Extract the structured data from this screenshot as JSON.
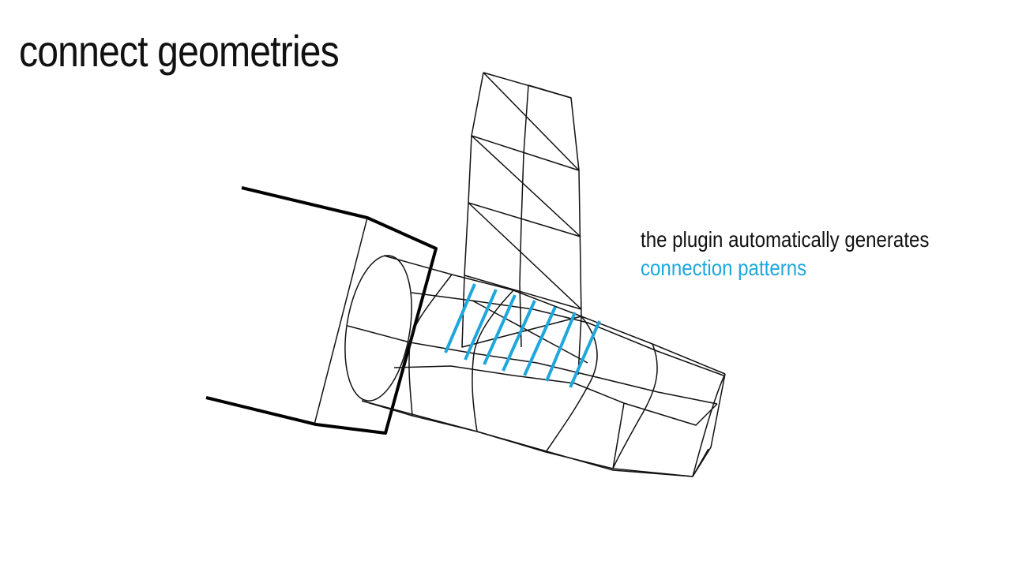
{
  "slide": {
    "title": "connect geometries"
  },
  "caption": {
    "line1": "the plugin automatically generates",
    "line2": "connection patterns"
  },
  "colors": {
    "text": "#111111",
    "accent": "#1ea7dc",
    "background": "#ffffff"
  }
}
